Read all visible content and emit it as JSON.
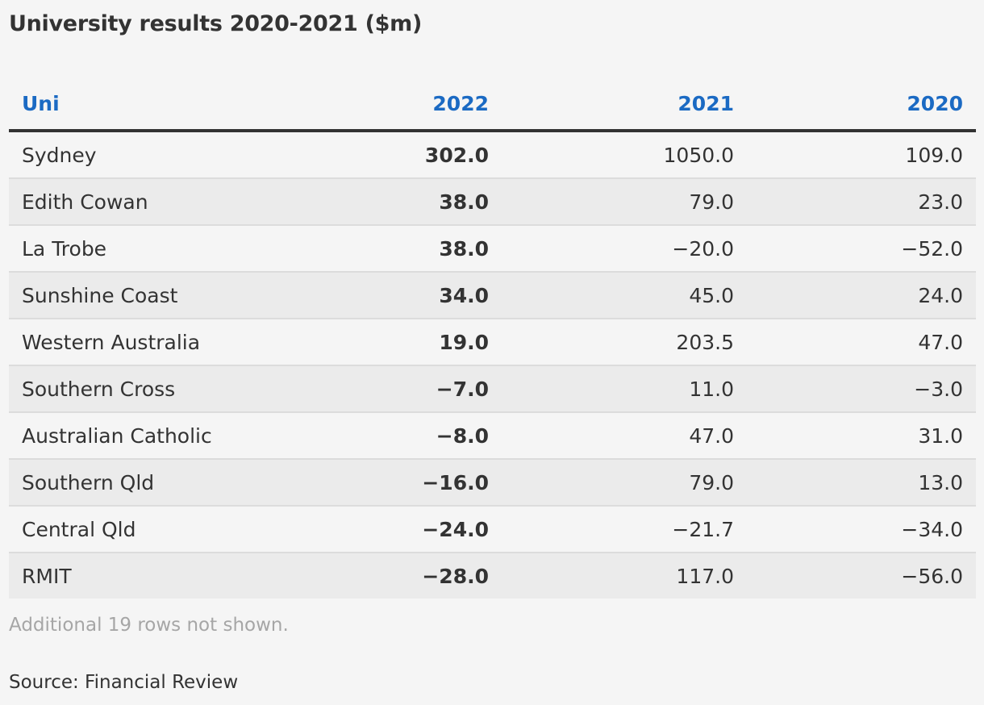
{
  "chart_data": {
    "type": "table",
    "title": "University results 2020-2021 ($m)",
    "columns": [
      "Uni",
      "2022",
      "2021",
      "2020"
    ],
    "rows": [
      {
        "uni": "Sydney",
        "y2022": "302.0",
        "y2021": "1050.0",
        "y2020": "109.0"
      },
      {
        "uni": "Edith Cowan",
        "y2022": "38.0",
        "y2021": "79.0",
        "y2020": "23.0"
      },
      {
        "uni": "La Trobe",
        "y2022": "38.0",
        "y2021": "−20.0",
        "y2020": "−52.0"
      },
      {
        "uni": "Sunshine Coast",
        "y2022": "34.0",
        "y2021": "45.0",
        "y2020": "24.0"
      },
      {
        "uni": "Western Australia",
        "y2022": "19.0",
        "y2021": "203.5",
        "y2020": "47.0"
      },
      {
        "uni": "Southern Cross",
        "y2022": "−7.0",
        "y2021": "11.0",
        "y2020": "−3.0"
      },
      {
        "uni": "Australian Catholic",
        "y2022": "−8.0",
        "y2021": "47.0",
        "y2020": "31.0"
      },
      {
        "uni": "Southern Qld",
        "y2022": "−16.0",
        "y2021": "79.0",
        "y2020": "13.0"
      },
      {
        "uni": "Central Qld",
        "y2022": "−24.0",
        "y2021": "−21.7",
        "y2020": "−34.0"
      },
      {
        "uni": "RMIT",
        "y2022": "−28.0",
        "y2021": "117.0",
        "y2020": "−56.0"
      }
    ],
    "note": "Additional 19 rows not shown.",
    "source": "Source: Financial Review",
    "colors": {
      "header_text": "#1b6ac3",
      "body_text": "#333333",
      "note_text": "#a6a6a6",
      "row_alt": "#ebebeb"
    }
  }
}
